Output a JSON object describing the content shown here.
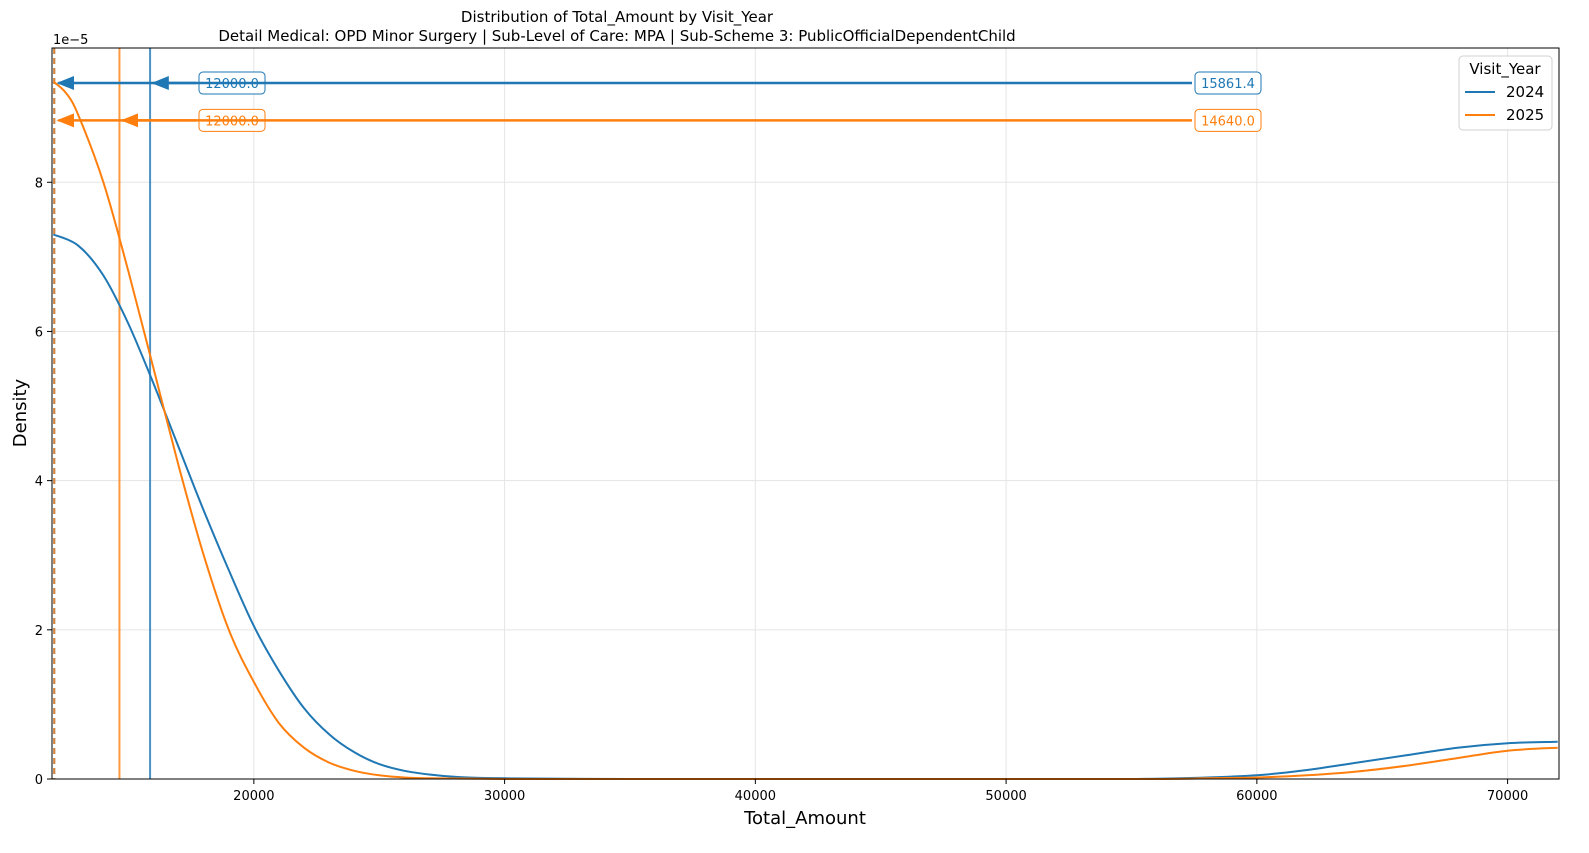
{
  "chart_data": {
    "type": "line",
    "title": "Distribution of Total_Amount by Visit_Year",
    "subtitle": "Detail Medical: OPD Minor Surgery | Sub-Level of Care: MPA | Sub-Scheme 3: PublicOfficialDependentChild",
    "xlabel": "Total_Amount",
    "ylabel": "Density",
    "y_multiplier_label": "1e−5",
    "xlim": [
      11950,
      72050
    ],
    "ylim": [
      0,
      9.8
    ],
    "x_ticks": [
      20000,
      30000,
      40000,
      50000,
      60000,
      70000
    ],
    "y_ticks": [
      0,
      2,
      4,
      6,
      8
    ],
    "grid": true,
    "legend": {
      "title": "Visit_Year",
      "placement": "top-right",
      "entries": [
        "2024",
        "2025"
      ]
    },
    "series": [
      {
        "name": "2024",
        "color": "#1f77b4",
        "x": [
          12000,
          13000,
          14000,
          15000,
          16000,
          17000,
          18000,
          19000,
          20000,
          21000,
          22000,
          23000,
          24000,
          25000,
          26000,
          27000,
          28000,
          30000,
          35000,
          40000,
          50000,
          55000,
          58000,
          60000,
          62000,
          64000,
          66000,
          68000,
          70000,
          72000
        ],
        "y": [
          7.3,
          7.15,
          6.75,
          6.1,
          5.3,
          4.45,
          3.6,
          2.8,
          2.05,
          1.45,
          0.95,
          0.6,
          0.36,
          0.2,
          0.11,
          0.06,
          0.03,
          0.01,
          0.0,
          0.0,
          0.0,
          0.0,
          0.02,
          0.05,
          0.12,
          0.22,
          0.32,
          0.42,
          0.48,
          0.5
        ],
        "median": 12000.0,
        "mean": 15861.4
      },
      {
        "name": "2025",
        "color": "#ff7f0e",
        "x": [
          12000,
          12500,
          13000,
          14000,
          15000,
          16000,
          17000,
          18000,
          19000,
          20000,
          21000,
          22000,
          23000,
          24000,
          25000,
          26000,
          27000,
          30000,
          35000,
          40000,
          50000,
          56000,
          58000,
          60000,
          62000,
          64000,
          66000,
          68000,
          70000,
          72000
        ],
        "y": [
          9.35,
          9.2,
          8.9,
          8.0,
          6.8,
          5.5,
          4.2,
          3.0,
          2.0,
          1.3,
          0.75,
          0.42,
          0.22,
          0.11,
          0.05,
          0.02,
          0.01,
          0.0,
          0.0,
          0.0,
          0.0,
          0.0,
          0.01,
          0.02,
          0.05,
          0.1,
          0.18,
          0.28,
          0.38,
          0.42
        ],
        "median": 12000.0,
        "mean": 14640.0
      }
    ],
    "annotations": [
      {
        "series": "2024",
        "text": "12000.0",
        "y": 9.33,
        "color": "#1f77b4"
      },
      {
        "series": "2024",
        "text": "15861.4",
        "y": 9.33,
        "color": "#1f77b4"
      },
      {
        "series": "2025",
        "text": "12000.0",
        "y": 8.83,
        "color": "#ff7f0e"
      },
      {
        "series": "2025",
        "text": "14640.0",
        "y": 8.83,
        "color": "#ff7f0e"
      }
    ]
  }
}
